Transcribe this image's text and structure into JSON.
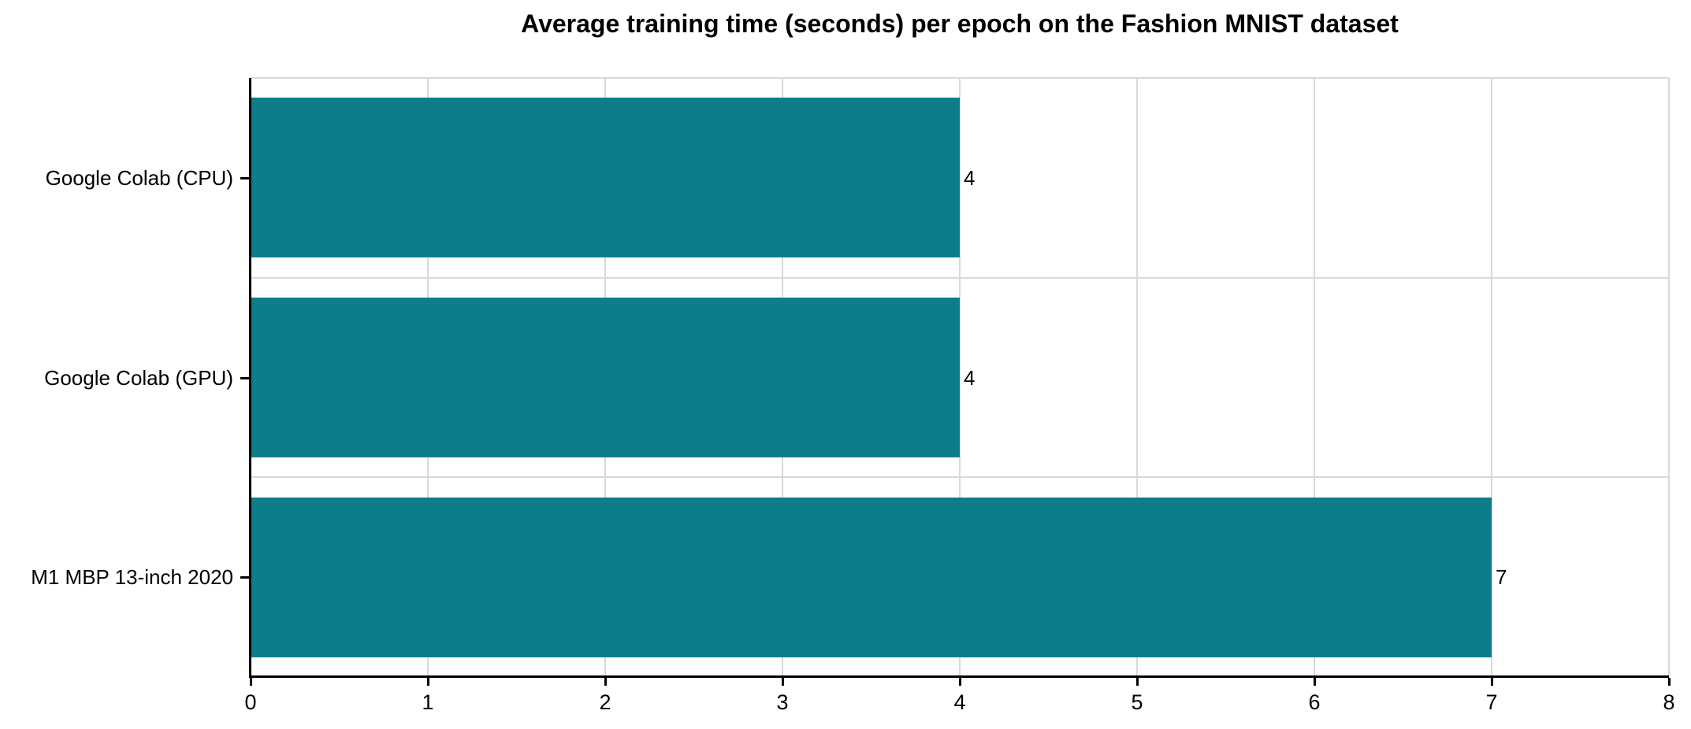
{
  "chart_data": {
    "type": "bar",
    "orientation": "horizontal",
    "title": "Average training time (seconds) per epoch on the Fashion MNIST dataset",
    "categories": [
      "Google Colab (CPU)",
      "Google Colab (GPU)",
      "M1 MBP 13-inch 2020"
    ],
    "values": [
      4,
      4,
      7
    ],
    "value_labels": [
      "4",
      "4",
      "7"
    ],
    "xlabel": "",
    "ylabel": "",
    "xlim": [
      0,
      8
    ],
    "x_ticks": [
      0,
      1,
      2,
      3,
      4,
      5,
      6,
      7,
      8
    ],
    "grid": "on",
    "legend": "none",
    "bar_color": "#0d7d8b",
    "grid_color": "#d9d9d9",
    "axis_color": "#000000",
    "text_color": "#000000",
    "background_color": "#ffffff"
  }
}
